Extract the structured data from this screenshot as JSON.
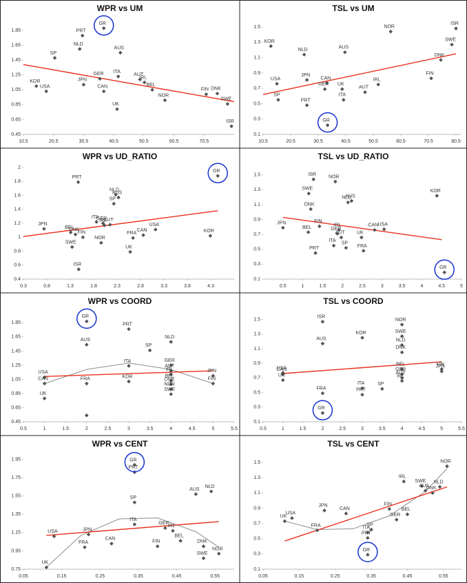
{
  "chart_data": [
    {
      "type": "scatter",
      "title": "WPR vs UM",
      "xlim": [
        10.5,
        80.5
      ],
      "xticks": [
        10.5,
        20.5,
        30.5,
        40.5,
        50.5,
        60.5,
        70.5
      ],
      "ylim": [
        0.45,
        2.0
      ],
      "yticks": [
        0.45,
        0.65,
        0.85,
        1.05,
        1.25,
        1.45,
        1.65,
        1.85
      ],
      "color": "#555555",
      "labels": [
        "KOR",
        "USA",
        "SP",
        "PRT",
        "NLD",
        "GR",
        "JPN",
        "GER",
        "CAN",
        "ITA",
        "AUS",
        "UK",
        "AUT",
        "IRL",
        "BEL",
        "NOR",
        "FIN",
        "DNK",
        "SWE",
        "ISR"
      ],
      "x": [
        14.8,
        18.1,
        20.9,
        30.1,
        29.2,
        37.2,
        30.5,
        35.9,
        37.2,
        42.0,
        42.7,
        41.6,
        49.2,
        50.7,
        53.3,
        57.5,
        71.2,
        74.9,
        78.3,
        79.6
      ],
      "values": [
        1.1,
        1.03,
        1.48,
        1.78,
        1.6,
        1.88,
        1.12,
        1.2,
        1.03,
        1.23,
        1.55,
        0.79,
        1.19,
        1.15,
        1.05,
        0.91,
        0.99,
        1.0,
        0.86,
        0.56
      ],
      "highlight": {
        "index": 5,
        "color": "#1530d0"
      },
      "trend": {
        "x": [
          10.5,
          80.5
        ],
        "values": [
          1.39,
          0.89
        ],
        "color": "#e8301c"
      }
    },
    {
      "type": "scatter",
      "title": "TSL vs UM",
      "xlim": [
        10.5,
        82.5
      ],
      "xticks": [
        10.5,
        20.5,
        30.5,
        40.5,
        50.5,
        60.5,
        70.5,
        80.5
      ],
      "ylim": [
        0.1,
        1.6
      ],
      "yticks": [
        0.1,
        0.3,
        0.5,
        0.7,
        0.9,
        1.1,
        1.3,
        1.5
      ],
      "color": "#555555",
      "labels": [
        "KOR",
        "NOR",
        "ISR",
        "SWE",
        "NLD",
        "AUS",
        "DNK",
        "USA",
        "JPN",
        "CAN",
        "GER",
        "UK",
        "FIN",
        "IRL",
        "AUT",
        "SP",
        "ITA",
        "PRT",
        "GR"
      ],
      "x": [
        13.3,
        56.8,
        80.5,
        79.0,
        25.4,
        40.2,
        75.0,
        15.5,
        26.4,
        33.7,
        32.9,
        39.2,
        71.5,
        52.3,
        47.5,
        16.0,
        39.7,
        26.4,
        33.9
      ],
      "values": [
        1.25,
        1.44,
        1.48,
        1.27,
        1.14,
        1.17,
        1.07,
        0.76,
        0.81,
        0.77,
        0.69,
        0.69,
        0.83,
        0.75,
        0.65,
        0.55,
        0.55,
        0.48,
        0.22
      ],
      "highlight": {
        "index": 18,
        "color": "#1530d0"
      },
      "trend": {
        "x": [
          10.5,
          80.5
        ],
        "values": [
          0.62,
          1.15
        ],
        "color": "#e8301c"
      }
    },
    {
      "type": "scatter",
      "title": "WPR vs UD_RATIO",
      "xlim": [
        0.3,
        4.8
      ],
      "xticks": [
        0.3,
        0.8,
        1.3,
        1.8,
        2.3,
        2.8,
        3.3,
        3.8,
        4.3
      ],
      "ylim": [
        0.4,
        2.0
      ],
      "yticks": [
        0.4,
        0.6,
        0.8,
        1,
        1.2,
        1.4,
        1.6,
        1.8,
        2
      ],
      "color": "#555555",
      "labels": [
        "JPN",
        "BEL",
        "DNK",
        "FIN",
        "SWE",
        "PRT",
        "ISR",
        "ITA",
        "GER",
        "IRL",
        "AUT",
        "NOR",
        "SP",
        "NLD",
        "AUS",
        "FRA",
        "CAN",
        "USA",
        "UK",
        "KOR",
        "GR"
      ],
      "x": [
        0.74,
        1.31,
        1.41,
        1.57,
        1.34,
        1.47,
        1.48,
        1.86,
        2.0,
        2.03,
        2.15,
        1.96,
        2.23,
        2.27,
        2.33,
        2.64,
        2.86,
        3.12,
        2.58,
        4.29,
        4.45
      ],
      "values": [
        1.12,
        1.07,
        1.04,
        1.0,
        0.86,
        1.79,
        0.54,
        1.22,
        1.2,
        1.17,
        1.18,
        0.92,
        1.48,
        1.61,
        1.57,
        0.99,
        1.03,
        1.11,
        0.79,
        1.02,
        1.88
      ],
      "highlight": {
        "index": 20,
        "color": "#1530d0"
      },
      "trend": {
        "x": [
          0.3,
          4.45
        ],
        "values": [
          1.01,
          1.38
        ],
        "color": "#e8301c"
      }
    },
    {
      "type": "scatter",
      "title": "TSL vs UD_RATIO",
      "xlim": [
        0,
        5
      ],
      "xticks": [
        0.5,
        1,
        1.5,
        2,
        2.5,
        3,
        3.5,
        4,
        4.5,
        5
      ],
      "ylim": [
        0.1,
        1.6
      ],
      "yticks": [
        0.1,
        0.3,
        0.5,
        0.7,
        0.9,
        1.1,
        1.3,
        1.5
      ],
      "color": "#555555",
      "labels": [
        "JPN",
        "ISR",
        "NOR",
        "SWE",
        "DNK",
        "NLD",
        "AUS",
        "KOR",
        "FIN",
        "BEL",
        "GER",
        "IRL",
        "AUT",
        "CAN",
        "USA",
        "UK",
        "ITA",
        "SP",
        "FRA",
        "PRT",
        "GR"
      ],
      "x": [
        0.5,
        1.27,
        1.82,
        1.15,
        1.2,
        2.14,
        2.23,
        4.38,
        1.42,
        1.14,
        1.87,
        1.91,
        1.97,
        2.81,
        3.05,
        2.48,
        1.78,
        2.09,
        2.53,
        1.32,
        4.57
      ],
      "values": [
        0.79,
        1.44,
        1.41,
        1.25,
        1.04,
        1.13,
        1.15,
        1.22,
        0.81,
        0.73,
        0.71,
        0.76,
        0.66,
        0.76,
        0.77,
        0.66,
        0.55,
        0.52,
        0.48,
        0.45,
        0.19
      ],
      "highlight": {
        "index": 20,
        "color": "#1530d0"
      },
      "trend": {
        "x": [
          0.5,
          4.5
        ],
        "values": [
          0.93,
          0.63
        ],
        "color": "#e8301c"
      }
    },
    {
      "type": "scatter",
      "title": "WPR vs COORD",
      "xlim": [
        0.5,
        5.5
      ],
      "xticks": [
        0.5,
        1,
        1.5,
        2,
        2.5,
        3,
        3.5,
        4,
        4.5,
        5,
        5.5
      ],
      "ylim": [
        0.45,
        2.0
      ],
      "yticks": [
        0.45,
        0.65,
        0.85,
        1.05,
        1.25,
        1.45,
        1.65,
        1.85
      ],
      "color": "#555555",
      "labels": [
        "USA",
        "CAN",
        "UK",
        "GR",
        "AUS",
        "FRA",
        null,
        "PRT",
        "ITA",
        "KOR",
        "SP",
        "NLD",
        "GER",
        "AUT",
        "IRL",
        "BEL",
        "DNK",
        "NOR",
        "SWE",
        "JPN",
        "FIN"
      ],
      "x": [
        1,
        1,
        1,
        2,
        2,
        2,
        2,
        3,
        3,
        3,
        3.5,
        4,
        4,
        4,
        4,
        4,
        4,
        4,
        4,
        5,
        5
      ],
      "values": [
        1.08,
        0.99,
        0.78,
        1.87,
        1.54,
        0.99,
        0.54,
        1.76,
        1.24,
        1.02,
        1.46,
        1.58,
        1.25,
        1.17,
        1.12,
        1.03,
        0.98,
        0.91,
        0.84,
        1.1,
        0.99
      ],
      "highlight": {
        "index": 3,
        "color": "#1530d0"
      },
      "trend": {
        "x": [
          1,
          5
        ],
        "values": [
          1.09,
          1.17
        ],
        "color": "#e8301c"
      },
      "curve": {
        "x": [
          1,
          2,
          3,
          4,
          5
        ],
        "values": [
          0.99,
          1.19,
          1.28,
          1.19,
          0.99
        ],
        "color": "#8c8c8c"
      }
    },
    {
      "type": "scatter",
      "title": "TSL vs COORD",
      "xlim": [
        0.5,
        5.5
      ],
      "xticks": [
        0.5,
        1,
        1.5,
        2,
        2.5,
        3,
        3.5,
        4,
        4.5,
        5,
        5.5
      ],
      "ylim": [
        0.1,
        1.6
      ],
      "yticks": [
        0.1,
        0.3,
        0.5,
        0.7,
        0.9,
        1.1,
        1.3,
        1.5
      ],
      "color": "#555555",
      "labels": [
        "CAN",
        "USA",
        "UK",
        "FRA",
        "GR",
        "ISR",
        "AUS",
        "KOR",
        "ITA",
        "PRT",
        "SP",
        "NOR",
        "SWE",
        "NLD",
        "DNK",
        "BEL",
        "GER",
        "AUT",
        "IRL",
        "FIN",
        "JPN"
      ],
      "x": [
        1,
        1,
        1,
        2,
        2,
        2,
        2,
        3,
        3,
        3,
        3.5,
        4,
        4,
        4,
        4,
        4,
        4,
        4,
        4,
        5,
        5
      ],
      "values": [
        0.75,
        0.77,
        0.67,
        0.49,
        0.22,
        1.47,
        1.17,
        1.25,
        0.56,
        0.47,
        0.55,
        1.43,
        1.27,
        1.15,
        1.05,
        0.82,
        0.75,
        0.7,
        0.66,
        0.82,
        0.79
      ],
      "highlight": {
        "index": 4,
        "color": "#1530d0"
      },
      "trend": {
        "x": [
          1,
          5
        ],
        "values": [
          0.76,
          0.92
        ],
        "color": "#e8301c"
      }
    },
    {
      "type": "scatter",
      "title": "WPR vs CENT",
      "xlim": [
        0.05,
        0.6
      ],
      "xticks": [
        0.05,
        0.15,
        0.25,
        0.35,
        0.45,
        0.55
      ],
      "ylim": [
        0.75,
        2.0
      ],
      "yticks": [
        0.75,
        0.95,
        1.15,
        1.35,
        1.55,
        1.75,
        1.95
      ],
      "color": "#555555",
      "labels": [
        "UK",
        "USA",
        "JPN",
        "FRA",
        "CAN",
        "GR",
        "PRT",
        "SP",
        "ITA",
        "FIN",
        "GER",
        "IRL",
        "BEL",
        "AUS",
        "NLD",
        "DNK",
        "SWE",
        "NOR"
      ],
      "x": [
        0.11,
        0.13,
        0.22,
        0.21,
        0.28,
        0.34,
        0.34,
        0.34,
        0.34,
        0.4,
        0.42,
        0.44,
        0.46,
        0.5,
        0.54,
        0.52,
        0.52,
        0.56
      ],
      "values": [
        0.77,
        1.11,
        1.13,
        0.99,
        1.03,
        1.89,
        1.81,
        1.48,
        1.24,
        1.0,
        1.2,
        1.17,
        1.06,
        1.57,
        1.6,
        1.0,
        0.87,
        0.92
      ],
      "highlight": {
        "index": 5,
        "color": "#1530d0"
      },
      "trend": {
        "x": [
          0.11,
          0.56
        ],
        "values": [
          1.12,
          1.27
        ],
        "color": "#e8301c"
      },
      "curve": {
        "x": [
          0.11,
          0.2,
          0.3,
          0.4,
          0.5,
          0.56
        ],
        "values": [
          0.77,
          1.12,
          1.3,
          1.31,
          1.16,
          0.99
        ],
        "color": "#8c8c8c"
      }
    },
    {
      "type": "scatter",
      "title": "TSL vs CENT",
      "xlim": [
        0.05,
        0.6
      ],
      "xticks": [
        0.05,
        0.15,
        0.25,
        0.35,
        0.45,
        0.55
      ],
      "ylim": [
        0.1,
        1.6
      ],
      "yticks": [
        0.1,
        0.3,
        0.5,
        0.7,
        0.9,
        1.1,
        1.3,
        1.5
      ],
      "color": "#555555",
      "labels": [
        "UK",
        "USA",
        "JPN",
        "CAN",
        "FRA",
        "ITA",
        "SP",
        "PRT",
        "GR",
        "FIN",
        "GER",
        "BEL",
        "IRL",
        "SWE",
        "AUS",
        "DNK",
        "NLD",
        "NOR"
      ],
      "x": [
        0.11,
        0.13,
        0.22,
        0.28,
        0.2,
        0.34,
        0.35,
        0.34,
        0.34,
        0.4,
        0.42,
        0.45,
        0.44,
        0.49,
        0.5,
        0.52,
        0.54,
        0.56
      ],
      "values": [
        0.73,
        0.77,
        0.87,
        0.83,
        0.61,
        0.58,
        0.62,
        0.51,
        0.29,
        0.89,
        0.75,
        0.82,
        1.25,
        1.19,
        1.13,
        1.1,
        1.18,
        1.45
      ],
      "highlight": {
        "index": 8,
        "color": "#1530d0"
      },
      "trend": {
        "x": [
          0.11,
          0.56
        ],
        "values": [
          0.47,
          1.18
        ],
        "color": "#e8301c"
      },
      "curve": {
        "x": [
          0.11,
          0.2,
          0.3,
          0.4,
          0.5,
          0.56
        ],
        "values": [
          0.73,
          0.62,
          0.63,
          0.8,
          1.12,
          1.42
        ],
        "color": "#8c8c8c"
      }
    }
  ]
}
